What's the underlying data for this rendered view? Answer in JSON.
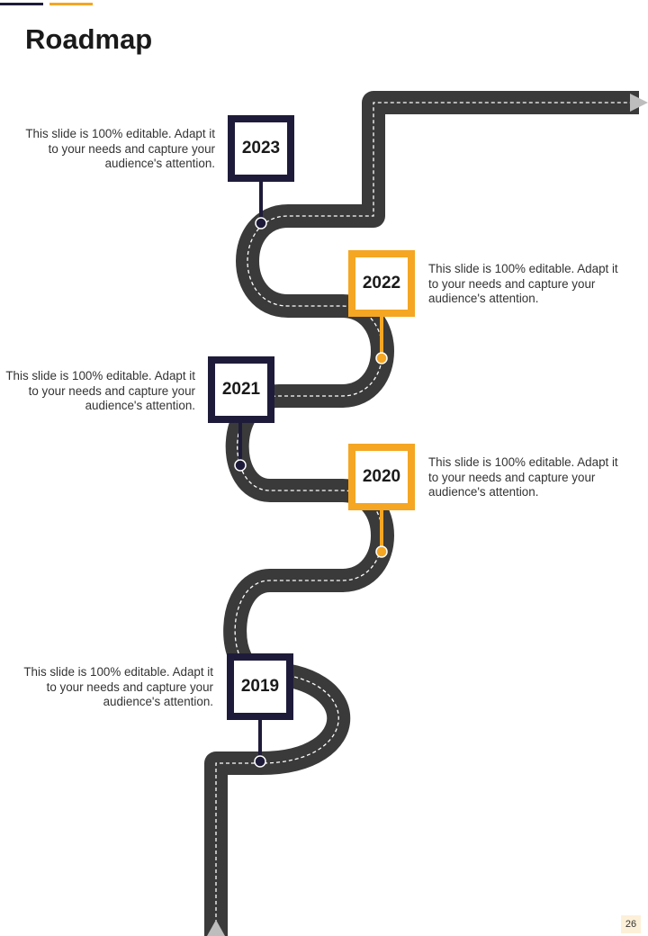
{
  "header": {
    "title": "Roadmap"
  },
  "colors": {
    "dark": "#1e1b3a",
    "accent": "#f5a623",
    "road": "#3a3a3a"
  },
  "milestones": [
    {
      "year": "2023",
      "text": "This slide is 100% editable. Adapt it to your needs and capture your audience's attention."
    },
    {
      "year": "2022",
      "text": "This slide is 100% editable. Adapt it to your needs and capture your audience's attention."
    },
    {
      "year": "2021",
      "text": "This slide is 100% editable. Adapt it to your needs and capture your audience's attention."
    },
    {
      "year": "2020",
      "text": "This slide is 100% editable. Adapt it to your needs and capture your audience's attention."
    },
    {
      "year": "2019",
      "text": "This slide is 100% editable. Adapt it to your needs and capture your audience's attention."
    }
  ],
  "footer": {
    "page_number": "26"
  }
}
